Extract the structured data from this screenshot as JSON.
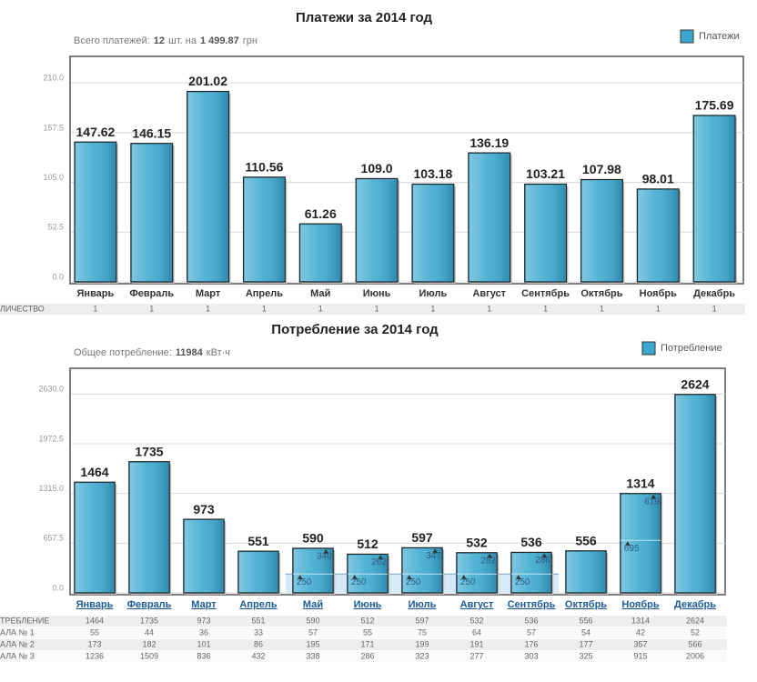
{
  "chart_data": [
    {
      "type": "bar",
      "title": "Платежи за 2014 год",
      "subtitle": [
        "Всего платежей:",
        "12",
        "шт. на",
        "1 499.87",
        "грн"
      ],
      "categories": [
        "Январь",
        "Февраль",
        "Март",
        "Апрель",
        "Май",
        "Июнь",
        "Июль",
        "Август",
        "Сентябрь",
        "Октябрь",
        "Ноябрь",
        "Декабрь"
      ],
      "series": [
        {
          "name": "Платежи",
          "color": "#3ba9cf",
          "values": [
            147.62,
            146.15,
            201.02,
            110.56,
            61.26,
            109.0,
            103.18,
            136.19,
            103.21,
            107.98,
            98.01,
            175.69
          ],
          "value_labels": [
            "147.62",
            "146.15",
            "201.02",
            "110.56",
            "61.26",
            "109.0",
            "103.18",
            "136.19",
            "103.21",
            "107.98",
            "98.01",
            "175.69"
          ]
        }
      ],
      "ylim": [
        0,
        238
      ],
      "yticks": [
        {
          "value": 0,
          "label": "0.0"
        },
        52.5,
        {
          "value": 105,
          "label": "105.0"
        },
        157.5,
        {
          "value": 210,
          "label": "210.0"
        }
      ],
      "grid": true,
      "legend": "top-right",
      "category_links": false,
      "table": {
        "rows": [
          {
            "label": "ЛИЧЕСТВО",
            "values": [
              1,
              1,
              1,
              1,
              1,
              1,
              1,
              1,
              1,
              1,
              1,
              1
            ]
          }
        ]
      }
    },
    {
      "type": "bar",
      "title": "Потребление за 2014 год",
      "subtitle": [
        "Общее потребление:",
        "11984",
        "кВт·ч"
      ],
      "categories": [
        "Январь",
        "Февраль",
        "Март",
        "Апрель",
        "Май",
        "Июнь",
        "Июль",
        "Август",
        "Сентябрь",
        "Октябрь",
        "Ноябрь",
        "Декабрь"
      ],
      "series": [
        {
          "name": "Потребление",
          "color": "#3ba9cf",
          "values": [
            1464,
            1735,
            973,
            551,
            590,
            512,
            597,
            532,
            536,
            556,
            1314,
            2624
          ],
          "segments": [
            [
              null,
              null,
              null,
              null,
              250,
              250,
              250,
              250,
              250,
              null,
              695,
              null
            ],
            [
              null,
              null,
              null,
              null,
              340,
              262,
              347,
              282,
              286,
              null,
              619,
              null
            ]
          ]
        }
      ],
      "ylim": [
        0,
        2970
      ],
      "yticks": [
        {
          "value": 0,
          "label": "0.0"
        },
        657.5,
        {
          "value": 1315,
          "label": "1315.0"
        },
        1972.5,
        {
          "value": 2630,
          "label": "2630.0"
        }
      ],
      "grid": true,
      "legend": "top-right",
      "category_links": true,
      "table": {
        "rows": [
          {
            "label": "ТРЕБЛЕНИЕ",
            "values": [
              1464,
              1735,
              973,
              551,
              590,
              512,
              597,
              532,
              536,
              556,
              1314,
              2624
            ]
          },
          {
            "label": "АЛА № 1",
            "values": [
              55,
              44,
              36,
              33,
              57,
              55,
              75,
              64,
              57,
              54,
              42,
              52
            ]
          },
          {
            "label": "АЛА № 2",
            "values": [
              173,
              182,
              101,
              86,
              195,
              171,
              199,
              191,
              176,
              177,
              357,
              566
            ]
          },
          {
            "label": "АЛА № 3",
            "values": [
              1236,
              1509,
              836,
              432,
              338,
              286,
              323,
              277,
              303,
              325,
              915,
              2006
            ]
          }
        ]
      }
    }
  ]
}
